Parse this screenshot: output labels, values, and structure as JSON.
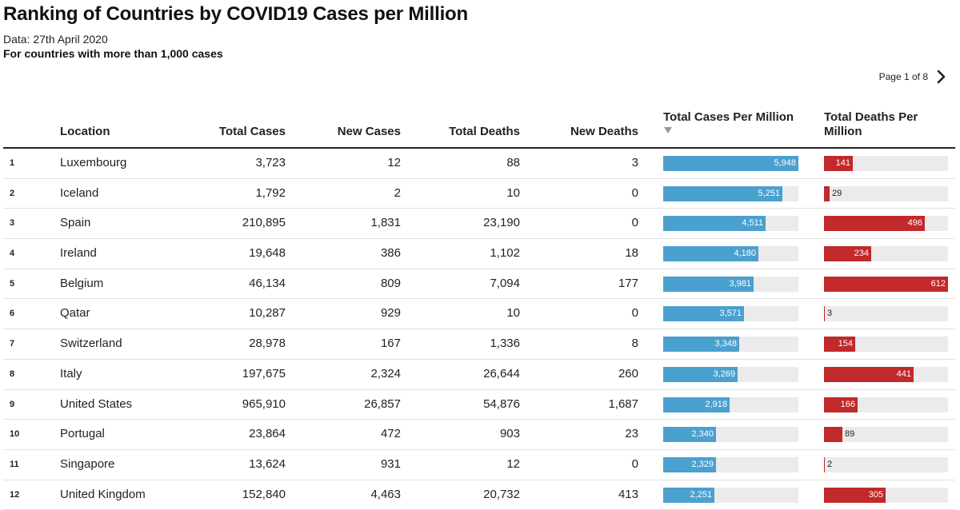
{
  "header": {
    "title": "Ranking of Countries by COVID19 Cases per Million",
    "subtitle": "Data: 27th April 2020",
    "note": "For countries with more than 1,000 cases"
  },
  "pager": {
    "label": "Page 1 of 8",
    "next_icon": "chevron-right-icon"
  },
  "colors": {
    "cases_bar": "#4aa0cf",
    "deaths_bar": "#c1292b",
    "track": "#ebebeb"
  },
  "chart_data": {
    "type": "table",
    "columns": [
      "",
      "Location",
      "Total Cases",
      "New Cases",
      "Total Deaths",
      "New Deaths",
      "Total Cases Per Million",
      "Total Deaths Per Million"
    ],
    "sorted_by": "Total Cases Per Million",
    "sort_direction": "descending",
    "bar_scales": {
      "Total Cases Per Million": [
        0,
        5948
      ],
      "Total Deaths Per Million": [
        0,
        612
      ]
    },
    "rows": [
      {
        "rank": "1",
        "location": "Luxembourg",
        "total_cases": "3,723",
        "new_cases": "12",
        "total_deaths": "88",
        "new_deaths": "3",
        "cases_pm": 5948,
        "cases_pm_label": "5,948",
        "deaths_pm": 141,
        "deaths_pm_label": "141"
      },
      {
        "rank": "2",
        "location": "Iceland",
        "total_cases": "1,792",
        "new_cases": "2",
        "total_deaths": "10",
        "new_deaths": "0",
        "cases_pm": 5251,
        "cases_pm_label": "5,251",
        "deaths_pm": 29,
        "deaths_pm_label": "29"
      },
      {
        "rank": "3",
        "location": "Spain",
        "total_cases": "210,895",
        "new_cases": "1,831",
        "total_deaths": "23,190",
        "new_deaths": "0",
        "cases_pm": 4511,
        "cases_pm_label": "4,511",
        "deaths_pm": 496,
        "deaths_pm_label": "496"
      },
      {
        "rank": "4",
        "location": "Ireland",
        "total_cases": "19,648",
        "new_cases": "386",
        "total_deaths": "1,102",
        "new_deaths": "18",
        "cases_pm": 4180,
        "cases_pm_label": "4,180",
        "deaths_pm": 234,
        "deaths_pm_label": "234"
      },
      {
        "rank": "5",
        "location": "Belgium",
        "total_cases": "46,134",
        "new_cases": "809",
        "total_deaths": "7,094",
        "new_deaths": "177",
        "cases_pm": 3981,
        "cases_pm_label": "3,981",
        "deaths_pm": 612,
        "deaths_pm_label": "612"
      },
      {
        "rank": "6",
        "location": "Qatar",
        "total_cases": "10,287",
        "new_cases": "929",
        "total_deaths": "10",
        "new_deaths": "0",
        "cases_pm": 3571,
        "cases_pm_label": "3,571",
        "deaths_pm": 3,
        "deaths_pm_label": "3"
      },
      {
        "rank": "7",
        "location": "Switzerland",
        "total_cases": "28,978",
        "new_cases": "167",
        "total_deaths": "1,336",
        "new_deaths": "8",
        "cases_pm": 3348,
        "cases_pm_label": "3,348",
        "deaths_pm": 154,
        "deaths_pm_label": "154"
      },
      {
        "rank": "8",
        "location": "Italy",
        "total_cases": "197,675",
        "new_cases": "2,324",
        "total_deaths": "26,644",
        "new_deaths": "260",
        "cases_pm": 3269,
        "cases_pm_label": "3,269",
        "deaths_pm": 441,
        "deaths_pm_label": "441"
      },
      {
        "rank": "9",
        "location": "United States",
        "total_cases": "965,910",
        "new_cases": "26,857",
        "total_deaths": "54,876",
        "new_deaths": "1,687",
        "cases_pm": 2918,
        "cases_pm_label": "2,918",
        "deaths_pm": 166,
        "deaths_pm_label": "166"
      },
      {
        "rank": "10",
        "location": "Portugal",
        "total_cases": "23,864",
        "new_cases": "472",
        "total_deaths": "903",
        "new_deaths": "23",
        "cases_pm": 2340,
        "cases_pm_label": "2,340",
        "deaths_pm": 89,
        "deaths_pm_label": "89"
      },
      {
        "rank": "11",
        "location": "Singapore",
        "total_cases": "13,624",
        "new_cases": "931",
        "total_deaths": "12",
        "new_deaths": "0",
        "cases_pm": 2329,
        "cases_pm_label": "2,329",
        "deaths_pm": 2,
        "deaths_pm_label": "2"
      },
      {
        "rank": "12",
        "location": "United Kingdom",
        "total_cases": "152,840",
        "new_cases": "4,463",
        "total_deaths": "20,732",
        "new_deaths": "413",
        "cases_pm": 2251,
        "cases_pm_label": "2,251",
        "deaths_pm": 305,
        "deaths_pm_label": "305"
      }
    ]
  }
}
